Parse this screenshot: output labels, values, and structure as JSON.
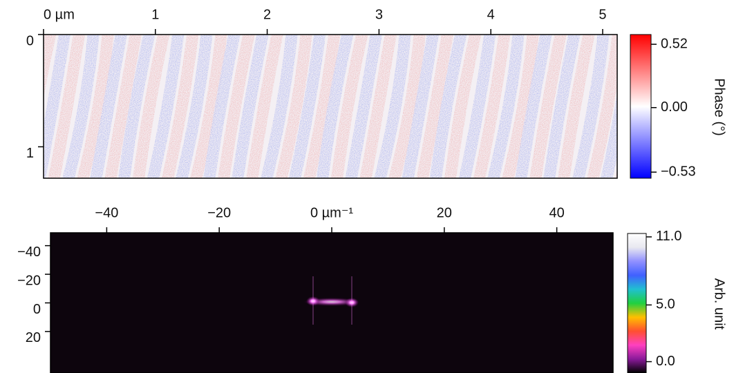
{
  "chart_data": [
    {
      "type": "image",
      "xlim": [
        0,
        5.13
      ],
      "xticks": [
        {
          "value": 0,
          "label": "0 µm"
        },
        1,
        2,
        3,
        4,
        5
      ],
      "ylim": [
        0,
        1.28
      ],
      "yticks": [
        0,
        1
      ],
      "colorbar": {
        "label": "Phase (°)",
        "lim": [
          -0.58,
          0.6
        ],
        "ticks": [
          0.52,
          {
            "value": 0,
            "label": "0.00"
          },
          {
            "value": -0.53,
            "label": "−0.53"
          }
        ],
        "colors": [
          "#0000ff",
          "#ffffff",
          "#ff0000"
        ]
      }
    },
    {
      "type": "image",
      "xlim": [
        -50,
        50
      ],
      "xticks": [
        {
          "value": -40,
          "label": "−40"
        },
        {
          "value": -20,
          "label": "−20"
        },
        {
          "value": 0,
          "label": "0 µm⁻¹"
        },
        20,
        40
      ],
      "ylim": [
        -49,
        49
      ],
      "yticks": [
        {
          "value": -40,
          "label": "−40"
        },
        {
          "value": -20,
          "label": "−20"
        },
        0,
        20
      ],
      "colorbar": {
        "label": "Arb. unit",
        "lim": [
          -1,
          11.3
        ],
        "ticks": [
          {
            "value": 11,
            "label": "11.0"
          },
          {
            "value": 5,
            "label": "5.0"
          },
          {
            "value": 0,
            "label": "0.0"
          }
        ],
        "colors": [
          "#000000",
          "#8a1a9a",
          "#ff40c0",
          "#ff5030",
          "#ffc000",
          "#20d040",
          "#20c0d0",
          "#4060ff",
          "#9090ff",
          "#e8e8f0",
          "#ffffff"
        ]
      }
    }
  ]
}
